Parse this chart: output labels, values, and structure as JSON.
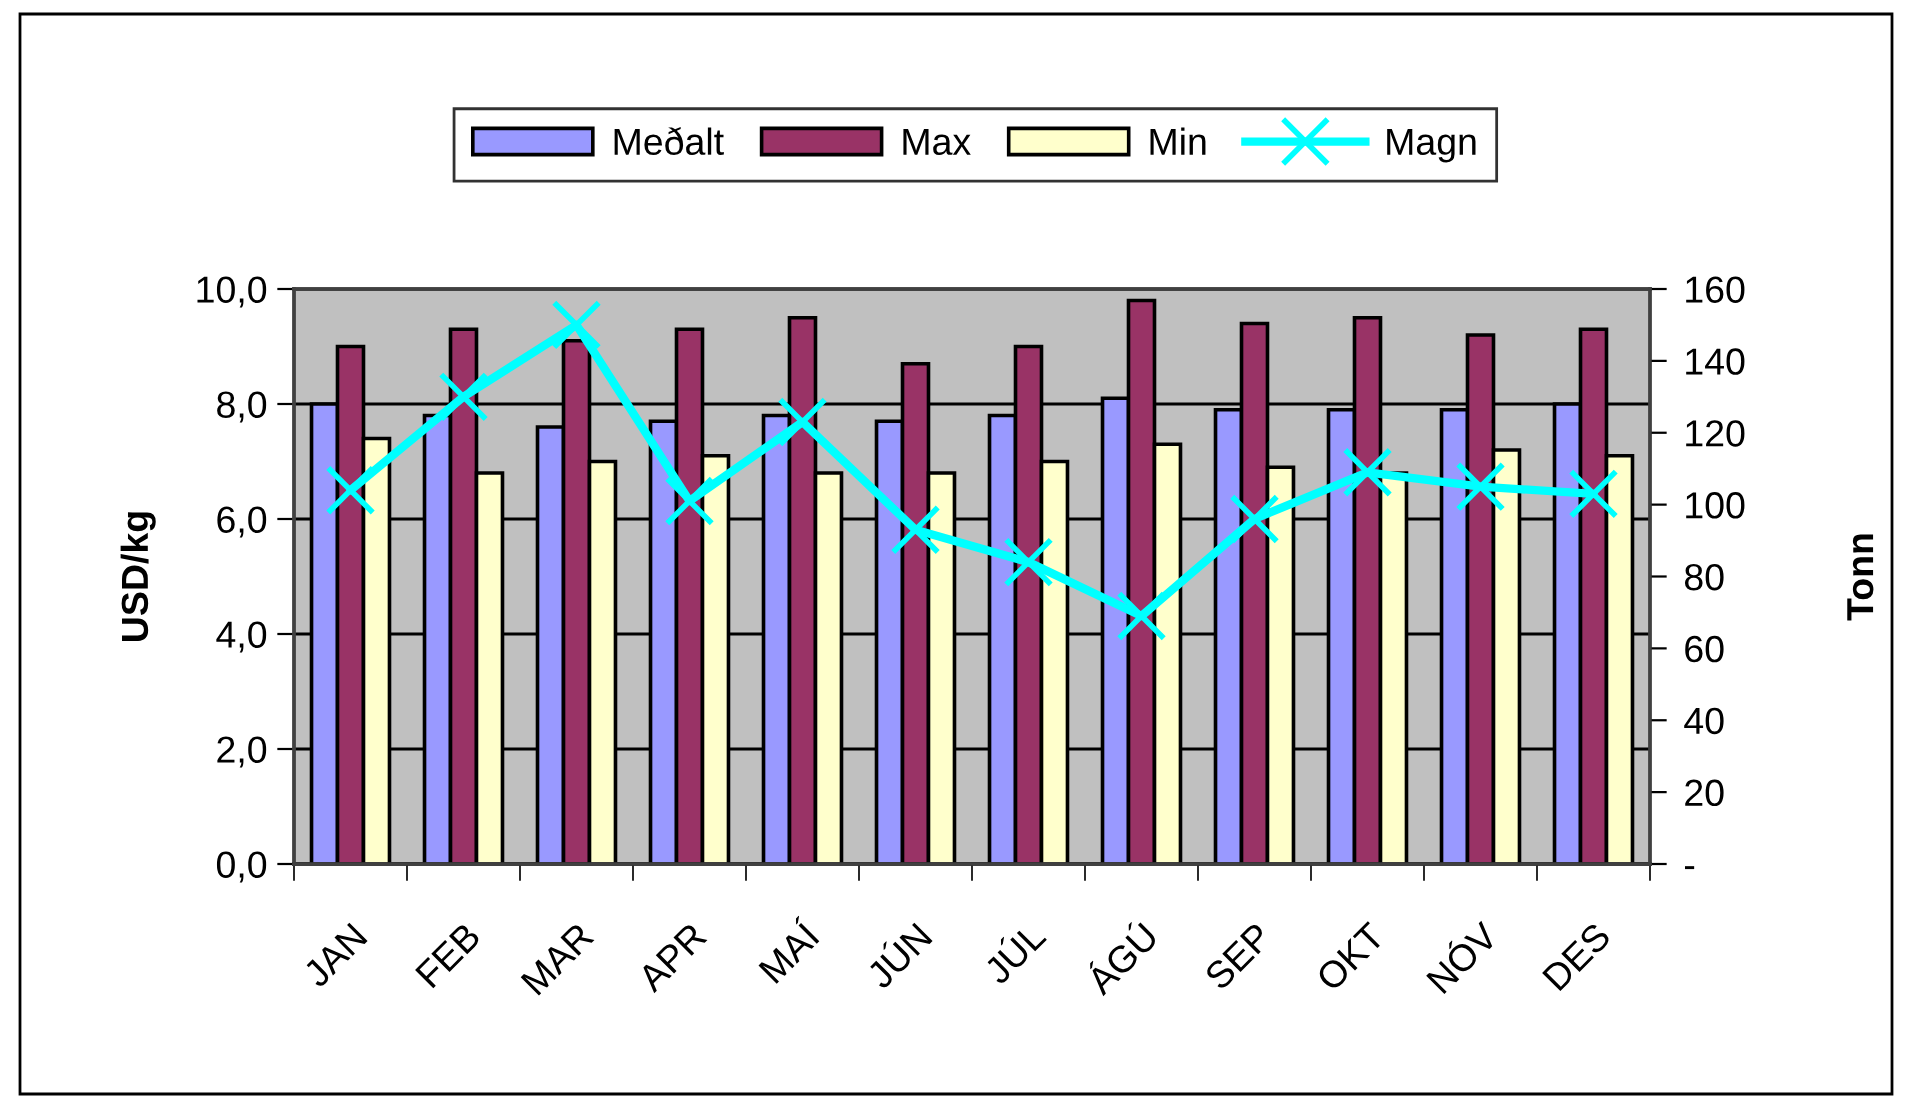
{
  "chart_data": {
    "type": "bar",
    "categories": [
      "JAN",
      "FEB",
      "MAR",
      "APR",
      "MAÍ",
      "JÚN",
      "JÚL",
      "ÁGÚ",
      "SEP",
      "OKT",
      "NÓV",
      "DES"
    ],
    "series": [
      {
        "name": "Meðalt",
        "color": "#9999ff",
        "values": [
          8.0,
          7.8,
          7.6,
          7.7,
          7.8,
          7.7,
          7.8,
          8.1,
          7.9,
          7.9,
          7.9,
          8.0
        ]
      },
      {
        "name": "Max",
        "color": "#993366",
        "values": [
          9.0,
          9.3,
          9.1,
          9.3,
          9.5,
          8.7,
          9.0,
          9.8,
          9.4,
          9.5,
          9.2,
          9.3
        ]
      },
      {
        "name": "Min",
        "color": "#ffffcc",
        "values": [
          7.4,
          6.8,
          7.0,
          7.1,
          6.8,
          6.8,
          7.0,
          7.3,
          6.9,
          6.8,
          7.2,
          7.1
        ]
      },
      {
        "name": "Magn",
        "type": "line",
        "axis": "y2",
        "color": "#00ffff",
        "marker": "cross",
        "values": [
          104,
          130,
          150,
          101,
          123,
          93,
          84,
          69,
          96,
          109,
          105,
          103
        ]
      }
    ],
    "ylabel": "USD/kg",
    "y2label": "Tonn",
    "ylim": [
      0,
      10
    ],
    "yticks": [
      {
        "value": 0,
        "label": "0,0"
      },
      {
        "value": 2,
        "label": "2,0"
      },
      {
        "value": 4,
        "label": "4,0"
      },
      {
        "value": 6,
        "label": "6,0"
      },
      {
        "value": 8,
        "label": "8,0"
      },
      {
        "value": 10,
        "label": "10,0"
      }
    ],
    "y2lim": [
      0,
      160
    ],
    "y2ticks": [
      {
        "value": 0,
        "label": "-"
      },
      20,
      40,
      60,
      80,
      100,
      120,
      140,
      160
    ],
    "grid": "y",
    "legend": "top"
  }
}
